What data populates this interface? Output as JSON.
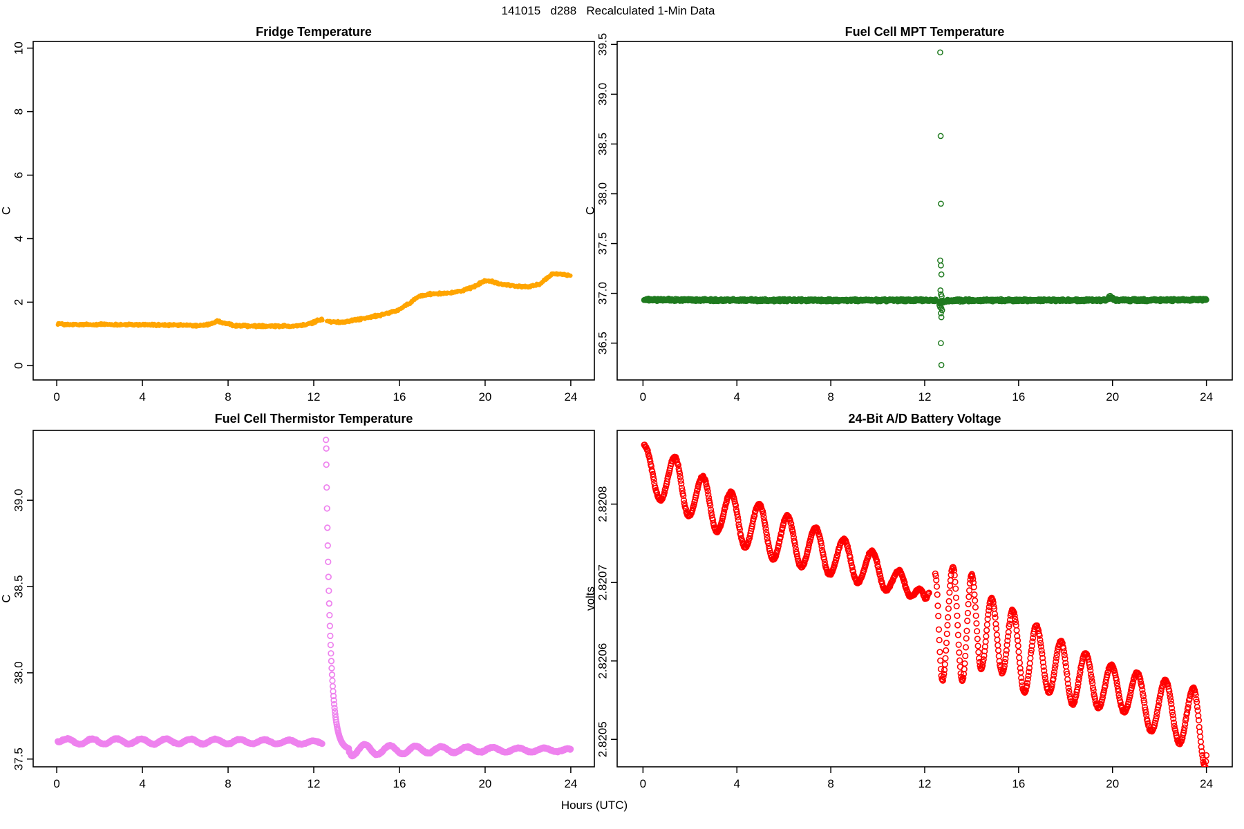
{
  "figure": {
    "title": "141015   d288   Recalculated 1-Min Data",
    "xlabel": "Hours (UTC)",
    "background": "#FFFFFF",
    "axis_color": "#000000"
  },
  "chart_data": [
    {
      "type": "scatter",
      "title": "Fridge Temperature",
      "ylabel": "C",
      "xlim": [
        -1.1,
        25.1
      ],
      "ylim": [
        -0.45,
        10.21
      ],
      "xtick_values": [
        0,
        4,
        8,
        12,
        16,
        20,
        24
      ],
      "xtick_labels": [
        "0",
        "4",
        "8",
        "12",
        "16",
        "20",
        "24"
      ],
      "ytick_values": [
        0,
        2,
        4,
        6,
        8,
        10
      ],
      "ytick_labels": [
        "0",
        "2",
        "4",
        "6",
        "8",
        "10"
      ],
      "color": "#FFA500",
      "marker": {
        "style": "filled",
        "r": 3.0,
        "sw": 1.5
      },
      "sample_step_min": 1.2,
      "series": [
        {
          "name": "fridge-temp",
          "mode": "linear",
          "noise": 0.045,
          "gaps": [
            [
              12.42,
              12.6
            ]
          ],
          "points": [
            [
              0.05,
              1.33
            ],
            [
              0.4,
              1.29
            ],
            [
              1,
              1.29
            ],
            [
              2,
              1.3
            ],
            [
              3,
              1.29
            ],
            [
              4,
              1.29
            ],
            [
              5,
              1.28
            ],
            [
              6,
              1.27
            ],
            [
              6.8,
              1.26
            ],
            [
              7.1,
              1.3
            ],
            [
              7.5,
              1.4
            ],
            [
              7.9,
              1.32
            ],
            [
              8.3,
              1.26
            ],
            [
              9,
              1.25
            ],
            [
              10,
              1.25
            ],
            [
              11,
              1.25
            ],
            [
              11.5,
              1.27
            ],
            [
              11.9,
              1.34
            ],
            [
              12.25,
              1.44
            ],
            [
              12.42,
              1.46
            ],
            [
              12.6,
              1.41
            ],
            [
              12.8,
              1.38
            ],
            [
              13.2,
              1.37
            ],
            [
              13.6,
              1.4
            ],
            [
              14.1,
              1.46
            ],
            [
              14.6,
              1.52
            ],
            [
              15.1,
              1.59
            ],
            [
              15.6,
              1.68
            ],
            [
              15.9,
              1.74
            ],
            [
              16.2,
              1.85
            ],
            [
              16.5,
              1.97
            ],
            [
              16.75,
              2.12
            ],
            [
              17,
              2.2
            ],
            [
              17.3,
              2.24
            ],
            [
              17.6,
              2.27
            ],
            [
              18,
              2.28
            ],
            [
              18.5,
              2.31
            ],
            [
              19,
              2.37
            ],
            [
              19.4,
              2.46
            ],
            [
              19.8,
              2.61
            ],
            [
              20.05,
              2.68
            ],
            [
              20.35,
              2.64
            ],
            [
              20.7,
              2.57
            ],
            [
              21.1,
              2.54
            ],
            [
              21.6,
              2.5
            ],
            [
              22,
              2.48
            ],
            [
              22.3,
              2.52
            ],
            [
              22.6,
              2.59
            ],
            [
              22.9,
              2.76
            ],
            [
              23.15,
              2.89
            ],
            [
              23.45,
              2.89
            ],
            [
              23.75,
              2.86
            ],
            [
              24,
              2.84
            ]
          ]
        }
      ],
      "outlier_points": []
    },
    {
      "type": "scatter",
      "title": "Fuel Cell MPT Temperature",
      "ylabel": "C",
      "xlim": [
        -1.1,
        25.1
      ],
      "ylim": [
        36.13,
        39.53
      ],
      "xtick_values": [
        0,
        4,
        8,
        12,
        16,
        20,
        24
      ],
      "xtick_labels": [
        "0",
        "4",
        "8",
        "12",
        "16",
        "20",
        "24"
      ],
      "ytick_values": [
        36.5,
        37.0,
        37.5,
        38.0,
        38.5,
        39.0,
        39.5
      ],
      "ytick_labels": [
        "36.5",
        "37.0",
        "37.5",
        "38.0",
        "38.5",
        "39.0",
        "39.5"
      ],
      "color": "#1F7A1F",
      "marker": {
        "style": "open",
        "r": 3.6,
        "sw": 1.5
      },
      "sample_step_min": 1.1,
      "series": [
        {
          "name": "mpt-temp",
          "mode": "linear",
          "noise": 0.013,
          "gaps": [
            [
              12.48,
              12.62
            ]
          ],
          "points": [
            [
              0.05,
              36.935
            ],
            [
              4,
              36.932
            ],
            [
              8,
              36.93
            ],
            [
              12.48,
              36.93
            ],
            [
              12.62,
              36.905
            ],
            [
              12.75,
              36.915
            ],
            [
              13,
              36.925
            ],
            [
              14,
              36.93
            ],
            [
              19.7,
              36.93
            ],
            [
              19.82,
              36.95
            ],
            [
              19.95,
              36.955
            ],
            [
              20.08,
              36.932
            ],
            [
              22,
              36.932
            ],
            [
              24,
              36.935
            ]
          ]
        }
      ],
      "outlier_points": [
        [
          12.66,
          39.42
        ],
        [
          12.68,
          38.58
        ],
        [
          12.69,
          37.9
        ],
        [
          12.66,
          37.33
        ],
        [
          12.69,
          37.28
        ],
        [
          12.71,
          37.19
        ],
        [
          12.67,
          37.03
        ],
        [
          12.69,
          36.99
        ],
        [
          12.72,
          36.97
        ],
        [
          12.63,
          36.88
        ],
        [
          12.66,
          36.86
        ],
        [
          12.71,
          36.85
        ],
        [
          12.74,
          36.83
        ],
        [
          12.69,
          36.8
        ],
        [
          12.71,
          36.76
        ],
        [
          12.69,
          36.5
        ],
        [
          12.71,
          36.28
        ],
        [
          19.86,
          36.97
        ],
        [
          19.9,
          36.975
        ]
      ]
    },
    {
      "type": "scatter",
      "title": "Fuel Cell Thermistor Temperature",
      "ylabel": "C",
      "xlim": [
        -1.1,
        25.1
      ],
      "ylim": [
        37.455,
        39.405
      ],
      "xtick_values": [
        0,
        4,
        8,
        12,
        16,
        20,
        24
      ],
      "xtick_labels": [
        "0",
        "4",
        "8",
        "12",
        "16",
        "20",
        "24"
      ],
      "ytick_values": [
        37.5,
        38.0,
        38.5,
        39.0
      ],
      "ytick_labels": [
        "37.5",
        "38.0",
        "38.5",
        "39.0"
      ],
      "color": "#EE82EE",
      "marker": {
        "style": "open",
        "r": 3.8,
        "sw": 1.7
      },
      "sample_step_min": 1.2,
      "series": [
        {
          "name": "thermistor-band-pre-spike",
          "mode": "wave",
          "noise": 0.004,
          "gaps": [],
          "points": [
            [
              0.05,
              37.6
            ],
            [
              0.5,
              37.618
            ],
            [
              1.08,
              37.586
            ],
            [
              1.65,
              37.617
            ],
            [
              2.22,
              37.587
            ],
            [
              2.8,
              37.618
            ],
            [
              3.37,
              37.588
            ],
            [
              3.95,
              37.617
            ],
            [
              4.52,
              37.586
            ],
            [
              5.1,
              37.618
            ],
            [
              5.67,
              37.588
            ],
            [
              6.25,
              37.616
            ],
            [
              6.82,
              37.587
            ],
            [
              7.4,
              37.615
            ],
            [
              7.97,
              37.588
            ],
            [
              8.55,
              37.614
            ],
            [
              9.12,
              37.589
            ],
            [
              9.7,
              37.612
            ],
            [
              10.27,
              37.588
            ],
            [
              10.85,
              37.61
            ],
            [
              11.42,
              37.586
            ],
            [
              12,
              37.606
            ],
            [
              12.4,
              37.592
            ]
          ]
        },
        {
          "name": "thermistor-spike-decay",
          "mode": "decay",
          "noise": 0,
          "gaps": [],
          "decay": {
            "t0": 12.57,
            "t1": 13.65,
            "peak": 39.35,
            "base": 37.553,
            "tau": 0.2,
            "step_min": 1.0
          }
        },
        {
          "name": "thermistor-band-post-spike",
          "mode": "wave",
          "noise": 0.004,
          "gaps": [],
          "points": [
            [
              13.65,
              37.543
            ],
            [
              13.78,
              37.518
            ],
            [
              14.38,
              37.585
            ],
            [
              14.95,
              37.525
            ],
            [
              15.55,
              37.578
            ],
            [
              16.15,
              37.53
            ],
            [
              16.75,
              37.575
            ],
            [
              17.35,
              37.535
            ],
            [
              17.95,
              37.572
            ],
            [
              18.55,
              37.538
            ],
            [
              19.15,
              37.57
            ],
            [
              19.75,
              37.54
            ],
            [
              20.35,
              37.568
            ],
            [
              20.95,
              37.541
            ],
            [
              21.55,
              37.565
            ],
            [
              22.15,
              37.541
            ],
            [
              22.75,
              37.563
            ],
            [
              23.35,
              37.543
            ],
            [
              23.9,
              37.56
            ],
            [
              24,
              37.556
            ]
          ]
        }
      ],
      "outlier_points": [
        [
          12.585,
          39.3
        ]
      ]
    },
    {
      "type": "scatter",
      "title": "24-Bit A/D Battery Voltage",
      "ylabel": "volts",
      "xlim": [
        -1.1,
        25.1
      ],
      "ylim": [
        2.820465,
        2.820894
      ],
      "xtick_values": [
        0,
        4,
        8,
        12,
        16,
        20,
        24
      ],
      "xtick_labels": [
        "0",
        "4",
        "8",
        "12",
        "16",
        "20",
        "24"
      ],
      "ytick_values": [
        2.8205,
        2.8206,
        2.8207,
        2.8208
      ],
      "ytick_labels": [
        "2.8205",
        "2.8206",
        "2.8207",
        "2.8208"
      ],
      "color": "#FF0000",
      "marker": {
        "style": "open",
        "r": 3.8,
        "sw": 1.6
      },
      "sample_step_min": 1.3,
      "series": [
        {
          "name": "battery-volts-seg1",
          "mode": "wave",
          "noise": 1.5e-06,
          "gaps": [],
          "points": [
            [
              0.05,
              2.820875
            ],
            [
              0.75,
              2.820805
            ],
            [
              1.35,
              2.82086
            ],
            [
              1.95,
              2.820785
            ],
            [
              2.55,
              2.820835
            ],
            [
              3.15,
              2.820765
            ],
            [
              3.75,
              2.820815
            ],
            [
              4.35,
              2.820745
            ],
            [
              4.95,
              2.8208
            ],
            [
              5.55,
              2.82073
            ],
            [
              6.15,
              2.820785
            ],
            [
              6.75,
              2.82072
            ],
            [
              7.35,
              2.82077
            ],
            [
              7.95,
              2.82071
            ],
            [
              8.55,
              2.820755
            ],
            [
              9.15,
              2.8207
            ],
            [
              9.75,
              2.82074
            ],
            [
              10.35,
              2.82069
            ],
            [
              10.9,
              2.820715
            ],
            [
              11.4,
              2.820682
            ],
            [
              11.8,
              2.820692
            ],
            [
              12.05,
              2.82068
            ],
            [
              12.2,
              2.820688
            ]
          ]
        },
        {
          "name": "battery-volts-seg2",
          "mode": "wave",
          "noise": 1.5e-06,
          "gaps": [],
          "points": [
            [
              12.45,
              2.82071
            ],
            [
              12.75,
              2.820575
            ],
            [
              13.2,
              2.82072
            ],
            [
              13.6,
              2.820575
            ],
            [
              14,
              2.82071
            ],
            [
              14.4,
              2.82059
            ],
            [
              14.85,
              2.82068
            ],
            [
              15.3,
              2.820585
            ],
            [
              15.75,
              2.820665
            ],
            [
              16.25,
              2.82056
            ],
            [
              16.75,
              2.820645
            ],
            [
              17.3,
              2.82056
            ],
            [
              17.8,
              2.820625
            ],
            [
              18.3,
              2.820545
            ],
            [
              18.85,
              2.82061
            ],
            [
              19.4,
              2.82054
            ],
            [
              19.95,
              2.820595
            ],
            [
              20.5,
              2.820535
            ],
            [
              21.05,
              2.820585
            ],
            [
              21.65,
              2.82051
            ],
            [
              22.25,
              2.820575
            ],
            [
              22.85,
              2.820495
            ],
            [
              23.45,
              2.820565
            ],
            [
              23.95,
              2.820465
            ],
            [
              24,
              2.82048
            ]
          ]
        }
      ],
      "outlier_points": []
    }
  ]
}
